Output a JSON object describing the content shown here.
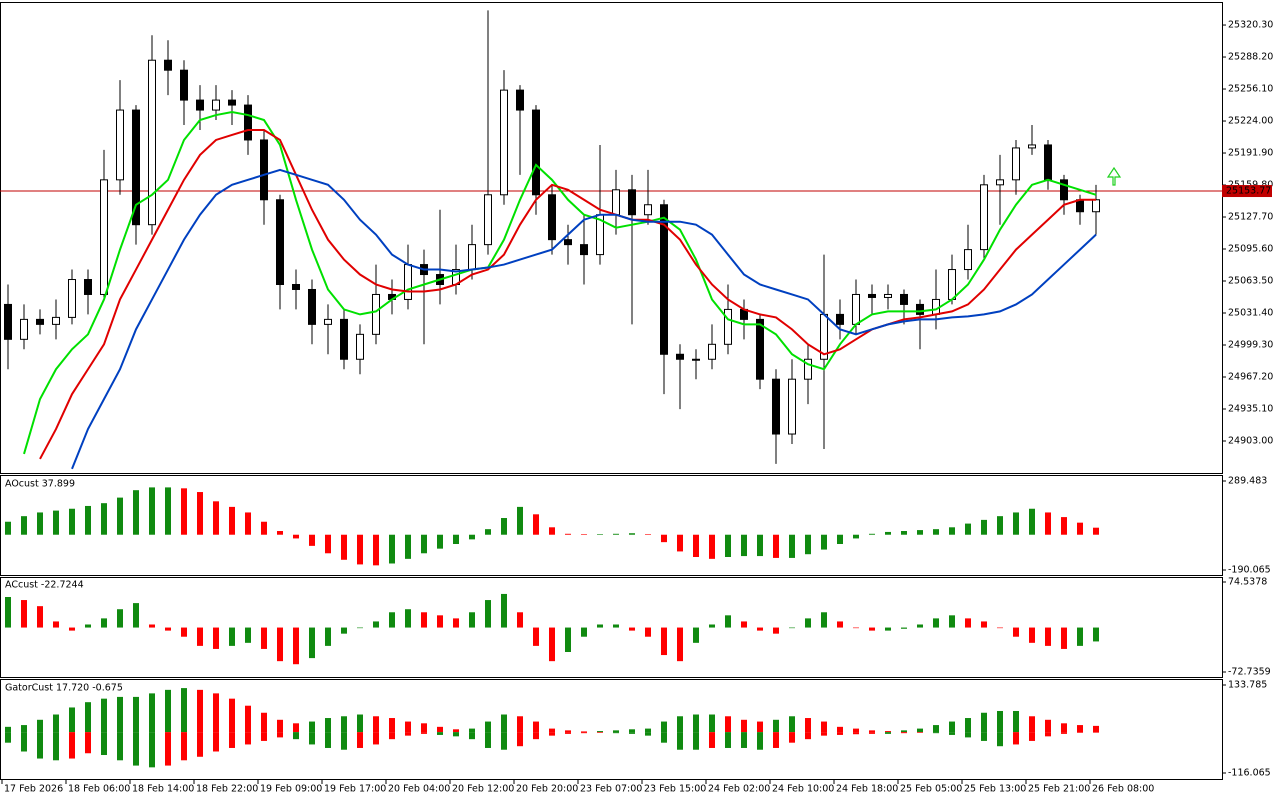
{
  "chart_data": [
    {
      "type": "candlestick",
      "categories": [
        "17 Feb 2026",
        null,
        null,
        null,
        "18 Feb 06:00",
        null,
        null,
        null,
        "18 Feb 14:00",
        null,
        null,
        null,
        "18 Feb 22:00",
        null,
        null,
        null,
        "19 Feb 09:00",
        null,
        null,
        null,
        "19 Feb 17:00",
        null,
        null,
        null,
        "20 Feb 04:00",
        null,
        null,
        null,
        "20 Feb 12:00",
        null,
        null,
        null,
        "20 Feb 20:00",
        null,
        null,
        null,
        "23 Feb 07:00",
        null,
        null,
        null,
        "23 Feb 15:00",
        null,
        null,
        null,
        "24 Feb 02:00",
        null,
        null,
        null,
        "24 Feb 10:00",
        null,
        null,
        null,
        "24 Feb 18:00",
        null,
        null,
        null,
        "25 Feb 05:00",
        null,
        null,
        null,
        "25 Feb 13:00",
        null,
        null,
        null,
        "25 Feb 21:00",
        null,
        null,
        null,
        "26 Feb 08:00"
      ],
      "open": [
        25040,
        25005,
        25025,
        25020,
        25027,
        25065,
        25050,
        25165,
        25235,
        25120,
        25285,
        25275,
        25245,
        25235,
        25245,
        25240,
        25205,
        25145,
        25060,
        25055,
        25020,
        25025,
        24985,
        25010,
        25050,
        25045,
        25080,
        25070,
        25060,
        25075,
        25100,
        25150,
        25255,
        25235,
        25150,
        25105,
        25100,
        25090,
        25130,
        25155,
        25130,
        25140,
        24990,
        24985,
        24985,
        25000,
        25035,
        25025,
        24965,
        24910,
        24965,
        24985,
        25030,
        25020,
        25050,
        25047,
        25050,
        25040,
        25030,
        25045,
        25075,
        25095,
        25160,
        25165,
        25197,
        25200,
        25165,
        25145,
        25133
      ],
      "high": [
        25060,
        25040,
        25035,
        25045,
        25075,
        25075,
        25195,
        25265,
        25240,
        25310,
        25305,
        25285,
        25260,
        25260,
        25255,
        25250,
        25215,
        25150,
        25075,
        25065,
        25040,
        25035,
        25020,
        25080,
        25065,
        25100,
        25095,
        25135,
        25100,
        25120,
        25335,
        25275,
        25260,
        25240,
        25160,
        25120,
        25130,
        25200,
        25175,
        25170,
        25175,
        25145,
        25000,
        24995,
        25020,
        25060,
        25045,
        25030,
        24975,
        24985,
        25000,
        25090,
        25045,
        25065,
        25060,
        25060,
        25055,
        25045,
        25075,
        25090,
        25120,
        25170,
        25190,
        25205,
        25220,
        25205,
        25170,
        25150,
        25160
      ],
      "low": [
        24975,
        24995,
        25010,
        25005,
        25020,
        25030,
        25045,
        25150,
        25100,
        25110,
        25250,
        25220,
        25215,
        25225,
        25220,
        25190,
        25120,
        25035,
        25035,
        25000,
        24990,
        24975,
        24970,
        25000,
        25030,
        25035,
        25000,
        25040,
        25050,
        25065,
        25090,
        25140,
        25170,
        25130,
        25090,
        25080,
        25060,
        25080,
        25110,
        25020,
        25120,
        24950,
        24935,
        24965,
        24975,
        24990,
        25005,
        24955,
        24880,
        24900,
        24940,
        24895,
        25005,
        25010,
        25030,
        25035,
        25020,
        24995,
        25015,
        25040,
        25065,
        25085,
        25120,
        25150,
        25190,
        25155,
        25130,
        25120,
        25110
      ],
      "close": [
        25005,
        25025,
        25020,
        25027,
        25065,
        25050,
        25165,
        25235,
        25120,
        25285,
        25275,
        25245,
        25235,
        25245,
        25240,
        25205,
        25145,
        25060,
        25055,
        25020,
        25025,
        24985,
        25010,
        25050,
        25045,
        25080,
        25070,
        25060,
        25075,
        25100,
        25150,
        25255,
        25235,
        25150,
        25105,
        25100,
        25090,
        25130,
        25155,
        25130,
        25140,
        24990,
        24985,
        24985,
        25000,
        25035,
        25025,
        24965,
        24910,
        24965,
        24985,
        25030,
        25020,
        25050,
        25047,
        25050,
        25040,
        25030,
        25045,
        25075,
        25095,
        25160,
        25165,
        25197,
        25200,
        25165,
        25145,
        25133,
        25145
      ],
      "up_color": "#ffffff",
      "down_color": "#000000",
      "series": [
        {
          "color": "#00e000",
          "values": [
            null,
            24890,
            24945,
            24975,
            24995,
            25010,
            25045,
            25095,
            25140,
            25150,
            25165,
            25205,
            25225,
            25230,
            25233,
            25230,
            25225,
            25200,
            25145,
            25095,
            25055,
            25035,
            25030,
            25033,
            25045,
            25055,
            25060,
            25065,
            25070,
            25075,
            25077,
            25105,
            25145,
            25180,
            25165,
            25145,
            25130,
            25125,
            25117,
            25120,
            25123,
            25127,
            25115,
            25085,
            25045,
            25025,
            25020,
            25020,
            25010,
            24990,
            24980,
            24975,
            25000,
            25020,
            25030,
            25033,
            25033,
            25033,
            25035,
            25045,
            25060,
            25085,
            25115,
            25140,
            25160,
            25165,
            25160,
            25155,
            25150
          ]
        },
        {
          "color": "#e00000",
          "values": [
            null,
            null,
            24885,
            24915,
            24950,
            24975,
            25000,
            25045,
            25075,
            25105,
            25135,
            25165,
            25190,
            25205,
            25210,
            25215,
            25215,
            25205,
            25170,
            25135,
            25105,
            25085,
            25070,
            25060,
            25055,
            25053,
            25053,
            25055,
            25060,
            25070,
            25075,
            25090,
            25120,
            25145,
            25160,
            25155,
            25145,
            25135,
            25130,
            25125,
            25125,
            25120,
            25105,
            25080,
            25060,
            25045,
            25035,
            25030,
            25027,
            25015,
            25000,
            24990,
            24995,
            25005,
            25015,
            25020,
            25025,
            25027,
            25030,
            25033,
            25040,
            25055,
            25075,
            25095,
            25110,
            25125,
            25140,
            25145,
            25145
          ]
        },
        {
          "color": "#0040c0",
          "values": [
            null,
            null,
            null,
            null,
            24875,
            24915,
            24945,
            24975,
            25015,
            25045,
            25075,
            25105,
            25130,
            25150,
            25160,
            25165,
            25170,
            25175,
            25170,
            25165,
            25160,
            25145,
            25125,
            25110,
            25090,
            25080,
            25075,
            25075,
            25073,
            25075,
            25077,
            25080,
            25085,
            25090,
            25095,
            25110,
            25125,
            25130,
            25130,
            25125,
            25123,
            25123,
            25123,
            25120,
            25110,
            25090,
            25070,
            25060,
            25055,
            25050,
            25045,
            25030,
            25015,
            25010,
            25015,
            25020,
            25023,
            25025,
            25025,
            25027,
            25028,
            25030,
            25033,
            25040,
            25050,
            25065,
            25080,
            25095,
            25110
          ]
        }
      ],
      "current_price": 25153.77,
      "current_price_color": "#c00000",
      "ylim": [
        24871.9,
        25342.4
      ],
      "yticks": [
        {
          "value": 25320.3,
          "label": "25320.30"
        },
        {
          "value": 25288.2,
          "label": "25288.20"
        },
        {
          "value": 25256.1,
          "label": "25256.10"
        },
        {
          "value": 25224,
          "label": "25224.00"
        },
        {
          "value": 25191.9,
          "label": "25191.90"
        },
        {
          "value": 25159.8,
          "label": "25159.80"
        },
        {
          "value": 25127.7,
          "label": "25127.70"
        },
        {
          "value": 25095.6,
          "label": "25095.60"
        },
        {
          "value": 25063.5,
          "label": "25063.50"
        },
        {
          "value": 25031.4,
          "label": "25031.40"
        },
        {
          "value": 24999.3,
          "label": "24999.30"
        },
        {
          "value": 24967.2,
          "label": "24967.20"
        },
        {
          "value": 24935.1,
          "label": "24935.10"
        },
        {
          "value": 24903,
          "label": "24903.00"
        }
      ]
    },
    {
      "type": "bar",
      "title": "AOcust 37.899",
      "up_color": "#108a10",
      "down_color": "#ff0000",
      "color_rule": "change",
      "series": [
        {
          "values": [
            70,
            100,
            120,
            130,
            140,
            155,
            170,
            200,
            240,
            255,
            255,
            250,
            230,
            180,
            150,
            120,
            70,
            20,
            -20,
            -60,
            -100,
            -135,
            -160,
            -165,
            -155,
            -130,
            -100,
            -75,
            -50,
            -25,
            30,
            90,
            150,
            110,
            40,
            5,
            2,
            3,
            5,
            8,
            2,
            -40,
            -90,
            -120,
            -130,
            -120,
            -115,
            -115,
            -125,
            -125,
            -105,
            -80,
            -50,
            -20,
            5,
            15,
            20,
            25,
            30,
            40,
            60,
            80,
            100,
            120,
            140,
            120,
            95,
            65,
            37.899
          ]
        }
      ],
      "ylim": [
        -190.065,
        289.483
      ],
      "yticks": [
        289.483,
        -190.065
      ]
    },
    {
      "type": "bar",
      "title": "ACcust -22.7244",
      "up_color": "#108a10",
      "down_color": "#ff0000",
      "color_rule": "change",
      "series": [
        {
          "values": [
            50,
            45,
            35,
            10,
            -5,
            5,
            15,
            30,
            40,
            5,
            -5,
            -15,
            -30,
            -35,
            -30,
            -25,
            -35,
            -55,
            -60,
            -50,
            -30,
            -10,
            0,
            10,
            25,
            30,
            25,
            20,
            15,
            25,
            45,
            55,
            25,
            -30,
            -55,
            -40,
            -15,
            5,
            5,
            -5,
            -15,
            -45,
            -55,
            -25,
            5,
            20,
            10,
            -5,
            -10,
            0,
            15,
            25,
            10,
            0,
            -5,
            -5,
            -2,
            5,
            15,
            20,
            15,
            10,
            0,
            -15,
            -25,
            -30,
            -35,
            -30,
            -22.7244
          ]
        }
      ],
      "ylim": [
        -72.7359,
        74.5378
      ],
      "yticks": [
        74.5378,
        -72.7359
      ]
    },
    {
      "type": "bar",
      "title": "GatorCust 17.720 -0.675",
      "up_color": "#108a10",
      "down_color": "#ff0000",
      "color_rule": "magnitude",
      "series": [
        {
          "values": [
            15,
            20,
            35,
            50,
            70,
            85,
            95,
            100,
            100,
            110,
            120,
            125,
            120,
            110,
            95,
            75,
            55,
            35,
            25,
            30,
            40,
            45,
            50,
            45,
            40,
            30,
            25,
            15,
            8,
            10,
            30,
            50,
            45,
            30,
            10,
            5,
            2,
            3,
            5,
            8,
            10,
            30,
            45,
            50,
            50,
            45,
            35,
            30,
            35,
            45,
            40,
            30,
            15,
            10,
            5,
            3,
            5,
            10,
            20,
            30,
            40,
            55,
            60,
            60,
            45,
            35,
            25,
            20,
            17.72
          ]
        },
        {
          "values": [
            -30,
            -55,
            -75,
            -80,
            -75,
            -60,
            -65,
            -80,
            -95,
            -100,
            -95,
            -80,
            -70,
            -55,
            -45,
            -35,
            -25,
            -15,
            -20,
            -35,
            -45,
            -50,
            -45,
            -35,
            -20,
            -10,
            -5,
            -8,
            -12,
            -20,
            -45,
            -50,
            -40,
            -20,
            -10,
            -5,
            -3,
            -2,
            -3,
            -5,
            -10,
            -30,
            -50,
            -50,
            -45,
            -45,
            -45,
            -50,
            -45,
            -30,
            -20,
            -10,
            -8,
            -6,
            -5,
            -5,
            -3,
            -2,
            -3,
            -8,
            -15,
            -25,
            -40,
            -35,
            -25,
            -12,
            -5,
            -2,
            -0.675
          ]
        }
      ],
      "ylim": [
        -116.065,
        133.785
      ],
      "yticks": [
        133.785,
        -116.065
      ]
    }
  ]
}
